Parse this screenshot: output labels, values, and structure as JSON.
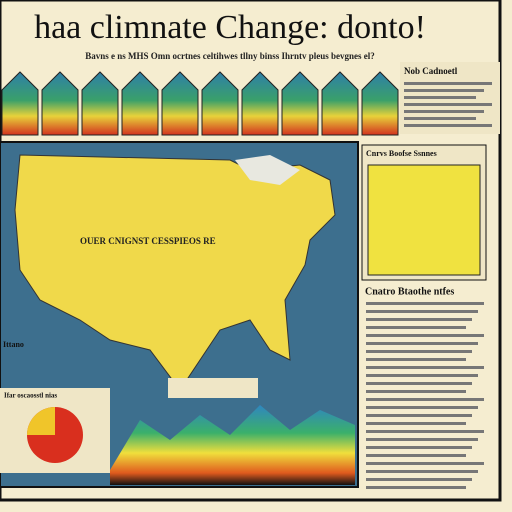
{
  "header": {
    "title": "haa climnate Change: donto!",
    "subtitle": "Bavns e ns MHS Omn ocrtnes celtihwes tllny binss Ihrntv pleus bevgnes el?"
  },
  "top_right": {
    "heading": "Nob Cadnoetl"
  },
  "map": {
    "label": "OUER CNIGNST CESSPIEOS RE",
    "side_label": "Ittano"
  },
  "chart_panel": {
    "heading": "Cnrvs Boofse Ssnnes"
  },
  "text_column": {
    "heading": "Cnatro Btaothe ntfes"
  },
  "bottom_left": {
    "heading": "Ifar oscaosstl nias"
  }
}
